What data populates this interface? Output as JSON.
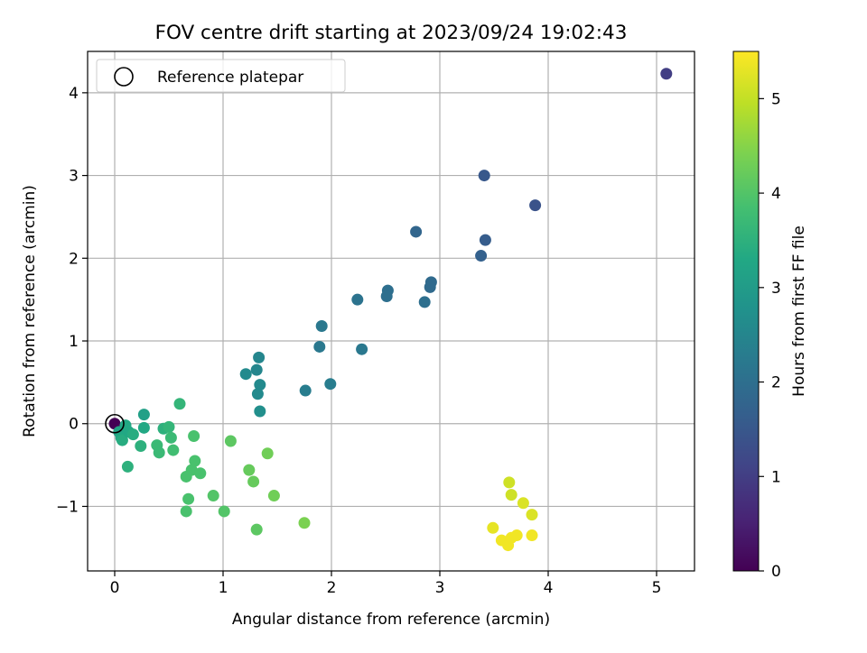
{
  "chart_data": {
    "type": "scatter",
    "title": "FOV centre drift starting at 2023/09/24 19:02:43",
    "xlabel": "Angular distance from reference (arcmin)",
    "ylabel": "Rotation from reference (arcmin)",
    "xlim": [
      -0.25,
      5.35
    ],
    "ylim": [
      -1.78,
      4.5
    ],
    "xticks": [
      0,
      1,
      2,
      3,
      4,
      5
    ],
    "yticks": [
      -1,
      0,
      1,
      2,
      3,
      4
    ],
    "xtick_labels": [
      "0",
      "1",
      "2",
      "3",
      "4",
      "5"
    ],
    "ytick_labels": [
      "−1",
      "0",
      "1",
      "2",
      "3",
      "4"
    ],
    "grid": true,
    "legend": {
      "position": "top-left",
      "entries": [
        "Reference platepar"
      ]
    },
    "colorbar": {
      "label": "Hours from first FF file",
      "colormap": "viridis",
      "range": [
        0,
        5.5
      ],
      "ticks": [
        0,
        1,
        2,
        3,
        4,
        5
      ],
      "tick_labels": [
        "0",
        "1",
        "2",
        "3",
        "4",
        "5"
      ]
    },
    "reference_point": {
      "x": 0,
      "y": 0
    },
    "points": [
      {
        "x": 0.0,
        "y": 0.0,
        "h": 0.0
      },
      {
        "x": 5.09,
        "y": 4.23,
        "h": 1.0
      },
      {
        "x": 3.41,
        "y": 3.0,
        "h": 1.5
      },
      {
        "x": 3.88,
        "y": 2.64,
        "h": 1.4
      },
      {
        "x": 3.42,
        "y": 2.22,
        "h": 1.6
      },
      {
        "x": 3.38,
        "y": 2.03,
        "h": 1.7
      },
      {
        "x": 2.78,
        "y": 2.32,
        "h": 1.8
      },
      {
        "x": 2.92,
        "y": 1.71,
        "h": 1.9
      },
      {
        "x": 2.91,
        "y": 1.65,
        "h": 1.9
      },
      {
        "x": 2.52,
        "y": 1.61,
        "h": 2.0
      },
      {
        "x": 2.51,
        "y": 1.54,
        "h": 2.0
      },
      {
        "x": 2.86,
        "y": 1.47,
        "h": 2.0
      },
      {
        "x": 2.24,
        "y": 1.5,
        "h": 2.1
      },
      {
        "x": 1.91,
        "y": 1.18,
        "h": 2.2
      },
      {
        "x": 1.89,
        "y": 0.93,
        "h": 2.2
      },
      {
        "x": 2.28,
        "y": 0.9,
        "h": 2.2
      },
      {
        "x": 1.76,
        "y": 0.4,
        "h": 2.3
      },
      {
        "x": 1.99,
        "y": 0.48,
        "h": 2.3
      },
      {
        "x": 1.33,
        "y": 0.8,
        "h": 2.5
      },
      {
        "x": 1.31,
        "y": 0.65,
        "h": 2.5
      },
      {
        "x": 1.21,
        "y": 0.6,
        "h": 2.6
      },
      {
        "x": 1.34,
        "y": 0.47,
        "h": 2.6
      },
      {
        "x": 1.32,
        "y": 0.36,
        "h": 2.6
      },
      {
        "x": 1.34,
        "y": 0.15,
        "h": 2.7
      },
      {
        "x": 0.27,
        "y": 0.11,
        "h": 3.1
      },
      {
        "x": 0.04,
        "y": -0.1,
        "h": 3.2
      },
      {
        "x": 0.1,
        "y": -0.02,
        "h": 3.3
      },
      {
        "x": 0.06,
        "y": -0.17,
        "h": 3.3
      },
      {
        "x": 0.07,
        "y": -0.2,
        "h": 3.4
      },
      {
        "x": 0.13,
        "y": -0.1,
        "h": 3.3
      },
      {
        "x": 0.17,
        "y": -0.13,
        "h": 3.4
      },
      {
        "x": 0.27,
        "y": -0.05,
        "h": 3.3
      },
      {
        "x": 0.12,
        "y": -0.52,
        "h": 3.5
      },
      {
        "x": 0.24,
        "y": -0.27,
        "h": 3.5
      },
      {
        "x": 0.45,
        "y": -0.06,
        "h": 3.5
      },
      {
        "x": 0.5,
        "y": -0.04,
        "h": 3.6
      },
      {
        "x": 0.6,
        "y": 0.24,
        "h": 3.6
      },
      {
        "x": 0.39,
        "y": -0.26,
        "h": 3.7
      },
      {
        "x": 0.41,
        "y": -0.35,
        "h": 3.7
      },
      {
        "x": 0.52,
        "y": -0.17,
        "h": 3.7
      },
      {
        "x": 0.54,
        "y": -0.32,
        "h": 3.8
      },
      {
        "x": 0.73,
        "y": -0.15,
        "h": 3.9
      },
      {
        "x": 0.74,
        "y": -0.45,
        "h": 3.9
      },
      {
        "x": 0.71,
        "y": -0.56,
        "h": 3.9
      },
      {
        "x": 0.79,
        "y": -0.6,
        "h": 3.9
      },
      {
        "x": 0.66,
        "y": -0.64,
        "h": 3.9
      },
      {
        "x": 0.68,
        "y": -0.91,
        "h": 3.9
      },
      {
        "x": 0.66,
        "y": -1.06,
        "h": 3.9
      },
      {
        "x": 0.91,
        "y": -0.87,
        "h": 4.0
      },
      {
        "x": 1.01,
        "y": -1.06,
        "h": 4.0
      },
      {
        "x": 1.07,
        "y": -0.21,
        "h": 4.1
      },
      {
        "x": 1.24,
        "y": -0.56,
        "h": 4.2
      },
      {
        "x": 1.28,
        "y": -0.7,
        "h": 4.2
      },
      {
        "x": 1.31,
        "y": -1.28,
        "h": 4.1
      },
      {
        "x": 1.41,
        "y": -0.36,
        "h": 4.3
      },
      {
        "x": 1.47,
        "y": -0.87,
        "h": 4.3
      },
      {
        "x": 1.75,
        "y": -1.2,
        "h": 4.4
      },
      {
        "x": 3.64,
        "y": -0.71,
        "h": 5.1
      },
      {
        "x": 3.66,
        "y": -0.86,
        "h": 5.1
      },
      {
        "x": 3.77,
        "y": -0.96,
        "h": 5.2
      },
      {
        "x": 3.85,
        "y": -1.1,
        "h": 5.2
      },
      {
        "x": 3.49,
        "y": -1.26,
        "h": 5.3
      },
      {
        "x": 3.57,
        "y": -1.41,
        "h": 5.4
      },
      {
        "x": 3.63,
        "y": -1.47,
        "h": 5.4
      },
      {
        "x": 3.66,
        "y": -1.38,
        "h": 5.4
      },
      {
        "x": 3.71,
        "y": -1.35,
        "h": 5.4
      },
      {
        "x": 3.85,
        "y": -1.35,
        "h": 5.4
      }
    ]
  }
}
